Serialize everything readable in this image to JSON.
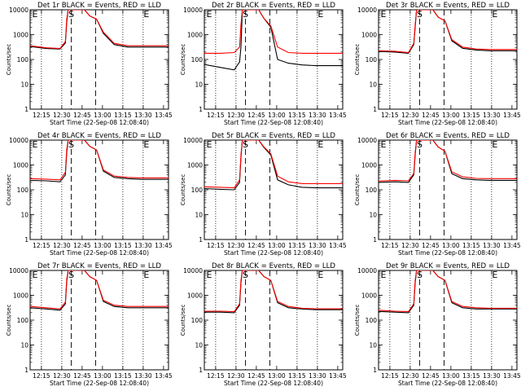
{
  "figure": {
    "ylabel": "Counts/sec",
    "xlabel": "Start Time (22-Sep-08 12:08:40)",
    "x_tick_labels": [
      "12:15",
      "12:30",
      "12:45",
      "13:00",
      "13:15",
      "13:30",
      "13:45"
    ],
    "y_tick_labels": [
      "1",
      "10",
      "100",
      "1000",
      "10000"
    ],
    "x_range_minutes_after_start": [
      -2,
      100
    ],
    "y_range_log10": [
      0,
      4
    ],
    "series_colors": {
      "events": "#000000",
      "lld": "#ff0000"
    }
  },
  "chart_data": [
    {
      "type": "line",
      "detector": "Det 1r",
      "title": "Det 1r BLACK = Events, RED = LLD",
      "markers": [
        "E",
        "S",
        "E"
      ],
      "series": [
        {
          "name": "Events",
          "color": "#000000",
          "x": [
            -2,
            10,
            20,
            24,
            25,
            26,
            30,
            38,
            42,
            47,
            52,
            60,
            70,
            80,
            90,
            100
          ],
          "y": [
            2.52,
            2.44,
            2.42,
            2.66,
            3.5,
            4.0,
            4.0,
            4.0,
            3.75,
            3.62,
            3.05,
            2.6,
            2.5,
            2.5,
            2.5,
            2.5
          ]
        },
        {
          "name": "LLD",
          "color": "#ff0000",
          "x": [
            -2,
            10,
            20,
            24,
            25,
            26,
            30,
            38,
            42,
            47,
            52,
            60,
            70,
            80,
            90,
            100
          ],
          "y": [
            2.55,
            2.47,
            2.44,
            2.72,
            3.62,
            4.0,
            4.0,
            4.0,
            3.75,
            3.62,
            3.1,
            2.65,
            2.55,
            2.55,
            2.55,
            2.55
          ]
        }
      ]
    },
    {
      "type": "line",
      "detector": "Det 2r",
      "title": "Det 2r BLACK = Events, RED = LLD",
      "markers": [
        "E",
        "S",
        "E"
      ],
      "series": [
        {
          "name": "Events",
          "color": "#000000",
          "x": [
            -2,
            10,
            20,
            24,
            25,
            26,
            30,
            38,
            42,
            47,
            52,
            60,
            70,
            80,
            90,
            100
          ],
          "y": [
            1.8,
            1.68,
            1.58,
            1.9,
            2.5,
            4.0,
            4.0,
            4.0,
            3.65,
            3.3,
            2.0,
            1.85,
            1.78,
            1.75,
            1.75,
            1.75
          ]
        },
        {
          "name": "LLD",
          "color": "#ff0000",
          "x": [
            -2,
            10,
            20,
            24,
            25,
            26,
            30,
            38,
            42,
            47,
            52,
            60,
            70,
            80,
            90,
            100
          ],
          "y": [
            2.25,
            2.25,
            2.28,
            2.5,
            3.4,
            4.0,
            4.0,
            4.0,
            3.65,
            3.35,
            2.5,
            2.28,
            2.25,
            2.25,
            2.25,
            2.25
          ]
        }
      ]
    },
    {
      "type": "line",
      "detector": "Det 3r",
      "title": "Det 3r BLACK = Events, RED = LLD",
      "markers": [
        "E",
        "S",
        "E"
      ],
      "series": [
        {
          "name": "Events",
          "color": "#000000",
          "x": [
            -2,
            10,
            20,
            24,
            25,
            26,
            30,
            38,
            42,
            47,
            52,
            60,
            70,
            80,
            90,
            100
          ],
          "y": [
            2.32,
            2.3,
            2.25,
            2.6,
            3.3,
            4.0,
            4.0,
            4.0,
            3.7,
            3.55,
            2.75,
            2.45,
            2.38,
            2.35,
            2.35,
            2.35
          ]
        },
        {
          "name": "LLD",
          "color": "#ff0000",
          "x": [
            -2,
            10,
            20,
            24,
            25,
            26,
            30,
            38,
            42,
            47,
            52,
            60,
            70,
            80,
            90,
            100
          ],
          "y": [
            2.35,
            2.33,
            2.28,
            2.65,
            3.4,
            4.0,
            4.0,
            4.0,
            3.7,
            3.55,
            2.8,
            2.5,
            2.42,
            2.4,
            2.4,
            2.4
          ]
        }
      ]
    },
    {
      "type": "line",
      "detector": "Det 4r",
      "title": "Det 4r BLACK = Events, RED = LLD",
      "markers": [
        "E",
        "S",
        "E"
      ],
      "series": [
        {
          "name": "Events",
          "color": "#000000",
          "x": [
            -2,
            10,
            20,
            24,
            25,
            26,
            30,
            38,
            42,
            47,
            52,
            60,
            70,
            80,
            90,
            100
          ],
          "y": [
            2.38,
            2.36,
            2.32,
            2.6,
            3.5,
            4.0,
            4.0,
            4.0,
            3.75,
            3.6,
            2.75,
            2.5,
            2.45,
            2.42,
            2.42,
            2.42
          ]
        },
        {
          "name": "LLD",
          "color": "#ff0000",
          "x": [
            -2,
            10,
            20,
            24,
            25,
            26,
            30,
            38,
            42,
            47,
            52,
            60,
            70,
            80,
            90,
            100
          ],
          "y": [
            2.45,
            2.43,
            2.4,
            2.7,
            3.62,
            4.0,
            4.0,
            4.0,
            3.75,
            3.6,
            2.8,
            2.55,
            2.5,
            2.48,
            2.48,
            2.48
          ]
        }
      ]
    },
    {
      "type": "line",
      "detector": "Det 5r",
      "title": "Det 5r BLACK = Events, RED = LLD",
      "markers": [
        "E",
        "S",
        "E"
      ],
      "series": [
        {
          "name": "Events",
          "color": "#000000",
          "x": [
            -2,
            10,
            20,
            24,
            25,
            26,
            30,
            38,
            42,
            47,
            52,
            60,
            70,
            80,
            90,
            100
          ],
          "y": [
            2.05,
            2.02,
            2.0,
            2.3,
            3.3,
            4.0,
            4.0,
            4.0,
            3.7,
            3.4,
            2.4,
            2.2,
            2.1,
            2.08,
            2.08,
            2.08
          ]
        },
        {
          "name": "LLD",
          "color": "#ff0000",
          "x": [
            -2,
            10,
            20,
            24,
            25,
            26,
            30,
            38,
            42,
            47,
            52,
            60,
            70,
            80,
            90,
            100
          ],
          "y": [
            2.12,
            2.1,
            2.08,
            2.4,
            3.4,
            4.0,
            4.0,
            4.0,
            3.72,
            3.45,
            2.55,
            2.32,
            2.25,
            2.25,
            2.25,
            2.25
          ]
        }
      ]
    },
    {
      "type": "line",
      "detector": "Det 6r",
      "title": "Det 6r BLACK = Events, RED = LLD",
      "markers": [
        "E",
        "S",
        "E"
      ],
      "series": [
        {
          "name": "Events",
          "color": "#000000",
          "x": [
            -2,
            10,
            20,
            24,
            25,
            26,
            30,
            38,
            42,
            47,
            52,
            60,
            70,
            80,
            90,
            100
          ],
          "y": [
            2.3,
            2.32,
            2.3,
            2.6,
            3.4,
            4.0,
            4.0,
            4.0,
            3.72,
            3.55,
            2.65,
            2.45,
            2.4,
            2.38,
            2.38,
            2.38
          ]
        },
        {
          "name": "LLD",
          "color": "#ff0000",
          "x": [
            -2,
            10,
            20,
            24,
            25,
            26,
            30,
            38,
            42,
            47,
            52,
            60,
            70,
            80,
            90,
            100
          ],
          "y": [
            2.35,
            2.38,
            2.36,
            2.66,
            3.5,
            4.0,
            4.0,
            4.0,
            3.72,
            3.55,
            2.72,
            2.52,
            2.46,
            2.45,
            2.45,
            2.45
          ]
        }
      ]
    },
    {
      "type": "line",
      "detector": "Det 7r",
      "title": "Det 7r BLACK = Events, RED = LLD",
      "markers": [
        "E",
        "S",
        "E"
      ],
      "series": [
        {
          "name": "Events",
          "color": "#000000",
          "x": [
            -2,
            10,
            20,
            24,
            25,
            26,
            30,
            38,
            42,
            47,
            52,
            60,
            70,
            80,
            90,
            100
          ],
          "y": [
            2.5,
            2.45,
            2.4,
            2.65,
            3.55,
            4.0,
            4.0,
            4.0,
            3.75,
            3.6,
            2.75,
            2.55,
            2.5,
            2.5,
            2.5,
            2.5
          ]
        },
        {
          "name": "LLD",
          "color": "#ff0000",
          "x": [
            -2,
            10,
            20,
            24,
            25,
            26,
            30,
            38,
            42,
            47,
            52,
            60,
            70,
            80,
            90,
            100
          ],
          "y": [
            2.55,
            2.5,
            2.45,
            2.72,
            3.65,
            4.0,
            4.0,
            4.0,
            3.75,
            3.6,
            2.8,
            2.6,
            2.55,
            2.55,
            2.55,
            2.55
          ]
        }
      ]
    },
    {
      "type": "line",
      "detector": "Det 8r",
      "title": "Det 8r BLACK = Events, RED = LLD",
      "markers": [
        "E",
        "S",
        "E"
      ],
      "series": [
        {
          "name": "Events",
          "color": "#000000",
          "x": [
            -2,
            10,
            20,
            24,
            25,
            26,
            30,
            38,
            42,
            47,
            52,
            60,
            70,
            80,
            90,
            100
          ],
          "y": [
            2.32,
            2.32,
            2.3,
            2.6,
            3.5,
            4.0,
            4.0,
            4.0,
            3.75,
            3.6,
            2.7,
            2.5,
            2.45,
            2.42,
            2.42,
            2.42
          ]
        },
        {
          "name": "LLD",
          "color": "#ff0000",
          "x": [
            -2,
            10,
            20,
            24,
            25,
            26,
            30,
            38,
            42,
            47,
            52,
            60,
            70,
            80,
            90,
            100
          ],
          "y": [
            2.36,
            2.36,
            2.34,
            2.66,
            3.6,
            4.0,
            4.0,
            4.0,
            3.75,
            3.6,
            2.75,
            2.55,
            2.48,
            2.46,
            2.46,
            2.46
          ]
        }
      ]
    },
    {
      "type": "line",
      "detector": "Det 9r",
      "title": "Det 9r BLACK = Events, RED = LLD",
      "markers": [
        "E",
        "S",
        "E"
      ],
      "series": [
        {
          "name": "Events",
          "color": "#000000",
          "x": [
            -2,
            10,
            20,
            24,
            25,
            26,
            30,
            38,
            42,
            47,
            52,
            60,
            70,
            80,
            90,
            100
          ],
          "y": [
            2.35,
            2.32,
            2.3,
            2.6,
            3.5,
            4.0,
            4.0,
            4.0,
            3.75,
            3.6,
            2.7,
            2.5,
            2.45,
            2.45,
            2.45,
            2.45
          ]
        },
        {
          "name": "LLD",
          "color": "#ff0000",
          "x": [
            -2,
            10,
            20,
            24,
            25,
            26,
            30,
            38,
            42,
            47,
            52,
            60,
            70,
            80,
            90,
            100
          ],
          "y": [
            2.4,
            2.36,
            2.34,
            2.66,
            3.6,
            4.0,
            4.0,
            4.0,
            3.75,
            3.6,
            2.75,
            2.55,
            2.5,
            2.48,
            2.48,
            2.48
          ]
        }
      ]
    }
  ]
}
